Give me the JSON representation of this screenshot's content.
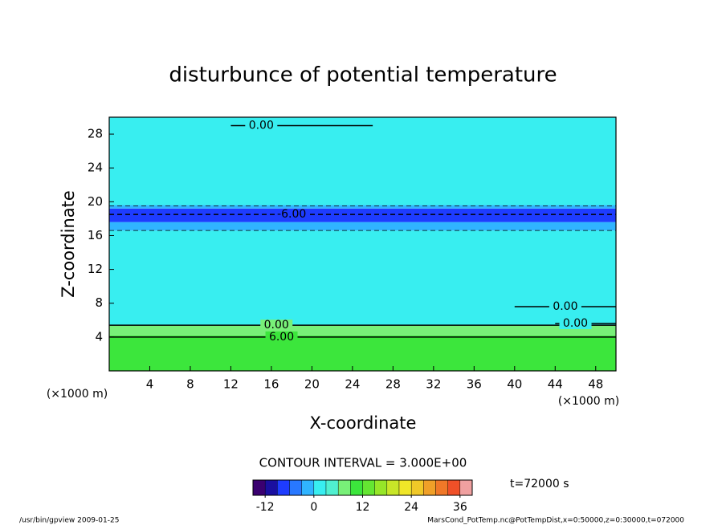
{
  "chart_data": {
    "type": "contour",
    "title": "disturbunce of potential temperature",
    "x_label": "X-coordinate",
    "y_label": "Z-coordinate",
    "x_unit": "(×1000 m)",
    "y_unit": "(×1000 m)",
    "xlim": [
      0,
      50
    ],
    "ylim": [
      0,
      30
    ],
    "xticks": [
      4,
      8,
      12,
      16,
      20,
      24,
      28,
      32,
      36,
      40,
      44,
      48
    ],
    "yticks": [
      4,
      8,
      12,
      16,
      20,
      24,
      28
    ],
    "bands": [
      {
        "z": [
          0,
          4.2
        ],
        "value": 10
      },
      {
        "z": [
          4.2,
          5.4
        ],
        "value": 7
      },
      {
        "z": [
          5.4,
          16.6
        ],
        "value": 1
      },
      {
        "z": [
          16.6,
          17.6
        ],
        "value": -2
      },
      {
        "z": [
          17.6,
          19.2
        ],
        "value": -7
      },
      {
        "z": [
          19.2,
          19.6
        ],
        "value": -2
      },
      {
        "z": [
          19.6,
          30
        ],
        "value": 1
      }
    ],
    "contours": [
      {
        "level": 6,
        "label": "6.00",
        "z": 4.0,
        "x": [
          0,
          50
        ]
      },
      {
        "level": 0,
        "label": "0.00",
        "z": 5.4,
        "x": [
          0,
          50
        ]
      },
      {
        "level": 0,
        "label": "0.00",
        "z": 7.6,
        "x": [
          40,
          50
        ]
      },
      {
        "level": 0,
        "label": "0.00",
        "z": 5.6,
        "x": [
          44,
          50
        ]
      },
      {
        "level": -6,
        "label": "-6.00",
        "z": 18.5,
        "x": [
          0,
          50
        ]
      },
      {
        "level": -3,
        "z": 16.6,
        "x": [
          0,
          50
        ]
      },
      {
        "level": -3,
        "z": 19.5,
        "x": [
          0,
          50
        ]
      },
      {
        "level": 0,
        "label": "0.00",
        "z": 29.0,
        "x": [
          12,
          26
        ]
      }
    ],
    "contour_interval": "CONTOUR INTERVAL = 3.000E+00",
    "time_label": "t=72000 s",
    "colorbar": {
      "clim": [
        -15,
        39
      ],
      "ticks": [
        -12,
        0,
        12,
        24,
        36
      ],
      "colors": [
        "#3a0070",
        "#1a0fa0",
        "#1e3cff",
        "#2878ff",
        "#30b4ff",
        "#38eef0",
        "#50f0d0",
        "#78f078",
        "#3ce63c",
        "#64e632",
        "#96e628",
        "#c8e628",
        "#f0e628",
        "#f0c828",
        "#f0a028",
        "#f07828",
        "#f05028",
        "#f0a0a0"
      ]
    },
    "footer_left": "/usr/bin/gpview   2009-01-25",
    "footer_right": "MarsCond_PotTemp.nc@PotTempDist,x=0:50000,z=0:30000,t=072000"
  }
}
